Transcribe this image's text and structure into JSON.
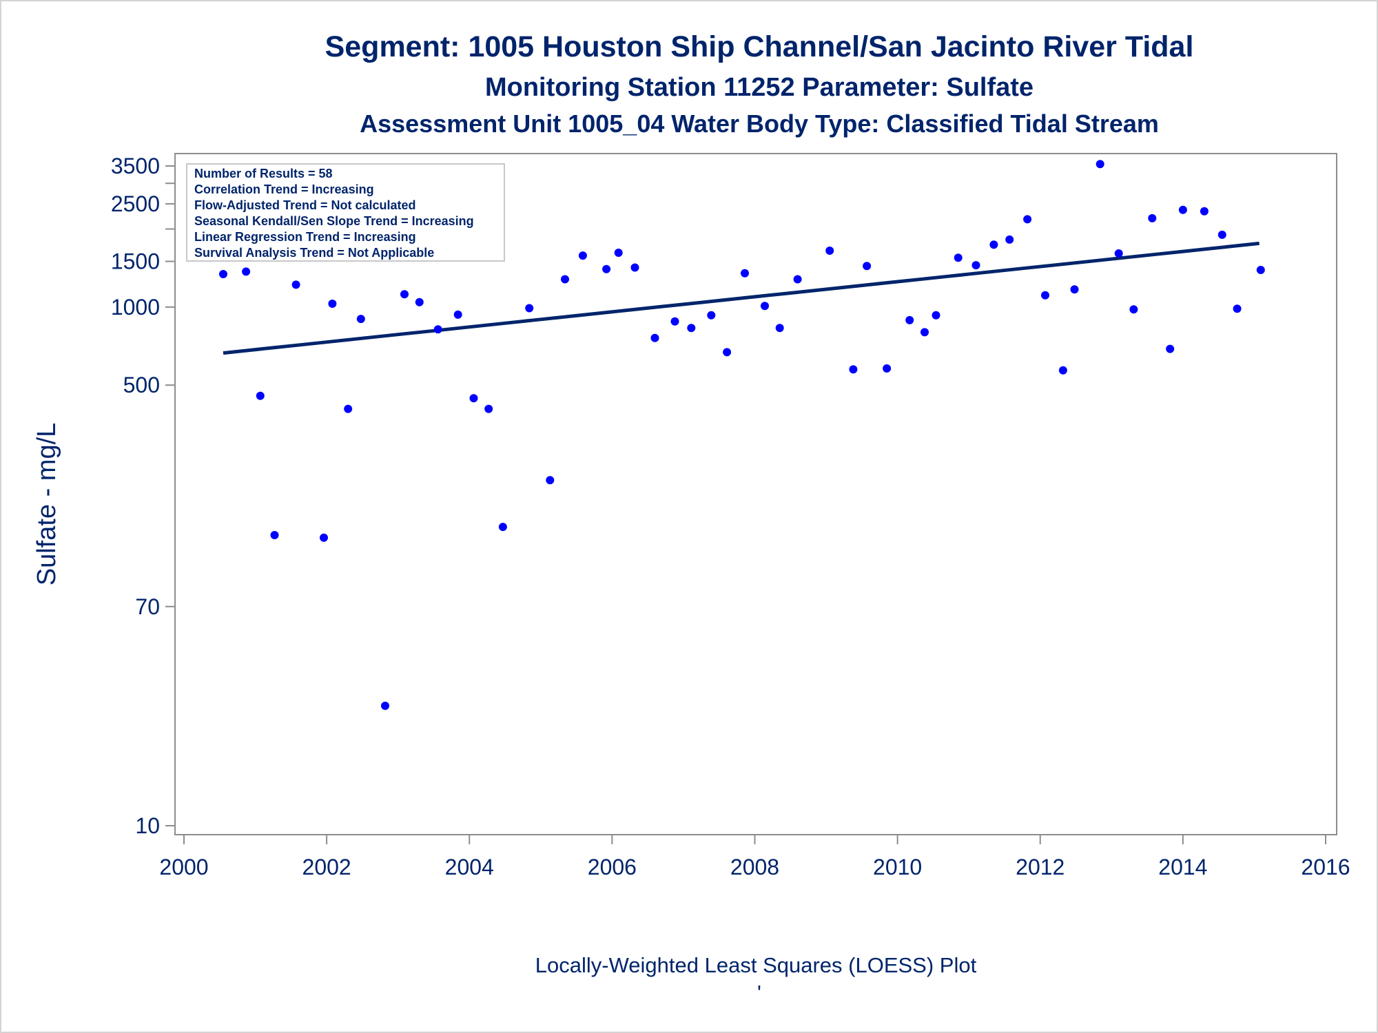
{
  "chart_data": {
    "type": "scatter",
    "title": "Segment: 1005  Houston Ship Channel/San Jacinto River Tidal",
    "subtitle": "Monitoring Station 11252 Parameter: Sulfate",
    "subtitle2": "Assessment Unit 1005_04   Water Body Type: Classified Tidal Stream",
    "ylabel": "Sulfate - mg/L",
    "footnote": "Locally-Weighted Least Squares (LOESS) Plot",
    "footnote_mark": "'",
    "xlim": [
      2000,
      2016
    ],
    "ylim": [
      10,
      3600
    ],
    "yscale": "log",
    "x_ticks": [
      2000,
      2002,
      2004,
      2006,
      2008,
      2010,
      2012,
      2014,
      2016
    ],
    "y_ticks": [
      {
        "value": 10,
        "label": "10"
      },
      {
        "value": 70,
        "label": "70"
      },
      {
        "value": 500,
        "label": "500"
      },
      {
        "value": 1000,
        "label": "1000"
      },
      {
        "value": 1500,
        "label": "1500"
      },
      {
        "value": 2000,
        "label": ""
      },
      {
        "value": 2500,
        "label": "2500"
      },
      {
        "value": 3000,
        "label": ""
      },
      {
        "value": 3500,
        "label": "3500"
      }
    ],
    "info_box": [
      "Number of Results = 58",
      "Correlation Trend = Increasing",
      "Flow-Adjusted Trend = Not calculated",
      "Seasonal Kendall/Sen Slope Trend = Increasing",
      "Linear Regression Trend = Increasing",
      "Survival Analysis Trend = Not Applicable"
    ],
    "points": [
      [
        2000.55,
        1340
      ],
      [
        2000.87,
        1370
      ],
      [
        2001.07,
        455
      ],
      [
        2001.27,
        132
      ],
      [
        2001.57,
        1220
      ],
      [
        2001.96,
        129
      ],
      [
        2002.08,
        1030
      ],
      [
        2002.3,
        405
      ],
      [
        2002.48,
        900
      ],
      [
        2002.82,
        29
      ],
      [
        2003.09,
        1120
      ],
      [
        2003.3,
        1045
      ],
      [
        2003.56,
        820
      ],
      [
        2003.84,
        935
      ],
      [
        2004.06,
        445
      ],
      [
        2004.27,
        405
      ],
      [
        2004.47,
        142
      ],
      [
        2004.84,
        990
      ],
      [
        2005.13,
        215
      ],
      [
        2005.34,
        1280
      ],
      [
        2005.59,
        1580
      ],
      [
        2005.92,
        1400
      ],
      [
        2006.09,
        1620
      ],
      [
        2006.32,
        1420
      ],
      [
        2006.6,
        760
      ],
      [
        2006.88,
        880
      ],
      [
        2007.11,
        830
      ],
      [
        2007.39,
        930
      ],
      [
        2007.61,
        670
      ],
      [
        2007.86,
        1350
      ],
      [
        2008.14,
        1010
      ],
      [
        2008.35,
        830
      ],
      [
        2008.6,
        1280
      ],
      [
        2009.05,
        1650
      ],
      [
        2009.38,
        575
      ],
      [
        2009.57,
        1440
      ],
      [
        2009.85,
        580
      ],
      [
        2010.17,
        890
      ],
      [
        2010.38,
        800
      ],
      [
        2010.54,
        930
      ],
      [
        2010.85,
        1550
      ],
      [
        2011.1,
        1450
      ],
      [
        2011.35,
        1740
      ],
      [
        2011.57,
        1820
      ],
      [
        2011.82,
        2180
      ],
      [
        2012.07,
        1110
      ],
      [
        2012.32,
        570
      ],
      [
        2012.48,
        1170
      ],
      [
        2012.84,
        3560
      ],
      [
        2013.1,
        1610
      ],
      [
        2013.31,
        980
      ],
      [
        2013.57,
        2200
      ],
      [
        2013.82,
        690
      ],
      [
        2014.0,
        2370
      ],
      [
        2014.3,
        2340
      ],
      [
        2014.55,
        1900
      ],
      [
        2014.76,
        985
      ],
      [
        2015.09,
        1390
      ]
    ],
    "trend_line": {
      "x": [
        2000.55,
        2015.07
      ],
      "y": [
        665,
        1760
      ]
    },
    "colors": {
      "points": "#0000ff",
      "line": "#00246b",
      "text": "#00246b",
      "axis": "#8c8c8c"
    }
  }
}
